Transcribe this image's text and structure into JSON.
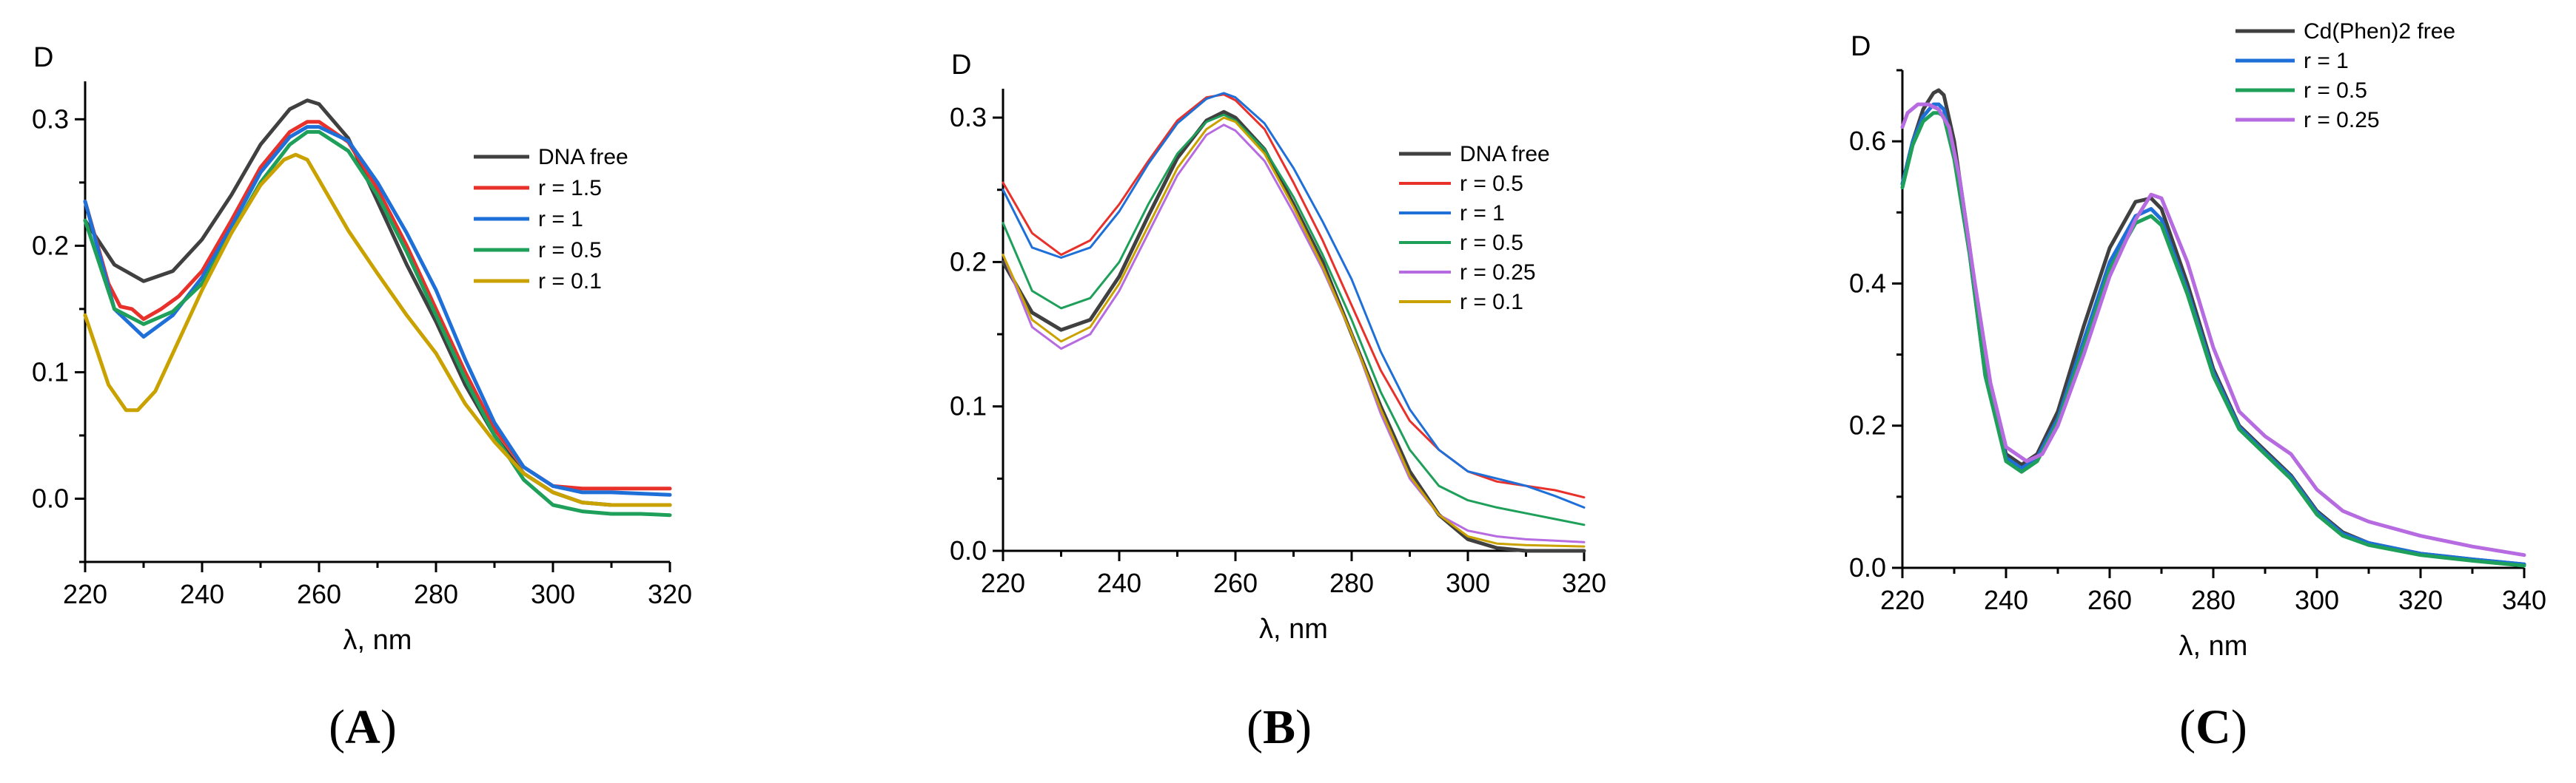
{
  "chart_data": [
    {
      "type": "line",
      "panel": "A",
      "panel_label": "A",
      "ylabel": "D",
      "xlabel": "λ, nm",
      "xlim": [
        220,
        320
      ],
      "ylim": [
        -0.05,
        0.33
      ],
      "xticks": [
        220,
        240,
        260,
        280,
        300,
        320
      ],
      "yticks": [
        0.0,
        0.1,
        0.2,
        0.3
      ],
      "ytick_labels": [
        "0.0",
        "0.1",
        "0.2",
        "0.3"
      ],
      "legend_position": "right-center",
      "series": [
        {
          "name": "DNA free",
          "color": "#404040",
          "width": 5,
          "x": [
            220,
            225,
            230,
            235,
            240,
            245,
            250,
            255,
            258,
            260,
            265,
            270,
            275,
            280,
            285,
            290,
            295,
            300,
            305,
            310,
            315,
            320
          ],
          "y": [
            0.22,
            0.185,
            0.172,
            0.18,
            0.205,
            0.24,
            0.28,
            0.308,
            0.315,
            0.312,
            0.285,
            0.235,
            0.185,
            0.14,
            0.09,
            0.05,
            0.02,
            0.005,
            -0.003,
            -0.005,
            -0.005,
            -0.005
          ]
        },
        {
          "name": "r = 1.5",
          "color": "#e8312a",
          "width": 5,
          "x": [
            220,
            224,
            226,
            228,
            230,
            233,
            236,
            240,
            245,
            250,
            255,
            258,
            260,
            265,
            270,
            275,
            280,
            285,
            290,
            295,
            300,
            305,
            310,
            320
          ],
          "y": [
            0.235,
            0.17,
            0.152,
            0.15,
            0.142,
            0.15,
            0.16,
            0.18,
            0.22,
            0.262,
            0.29,
            0.298,
            0.298,
            0.282,
            0.245,
            0.2,
            0.15,
            0.1,
            0.055,
            0.025,
            0.01,
            0.008,
            0.008,
            0.008
          ]
        },
        {
          "name": "r = 1",
          "color": "#1f6fd8",
          "width": 5,
          "x": [
            220,
            225,
            230,
            235,
            240,
            245,
            250,
            255,
            258,
            260,
            265,
            270,
            275,
            280,
            285,
            290,
            295,
            300,
            305,
            310,
            320
          ],
          "y": [
            0.235,
            0.15,
            0.128,
            0.145,
            0.175,
            0.215,
            0.258,
            0.286,
            0.294,
            0.294,
            0.283,
            0.25,
            0.21,
            0.165,
            0.11,
            0.06,
            0.025,
            0.01,
            0.005,
            0.005,
            0.003
          ]
        },
        {
          "name": "r = 0.5",
          "color": "#1fa05a",
          "width": 5,
          "x": [
            220,
            225,
            230,
            235,
            240,
            245,
            250,
            255,
            258,
            260,
            265,
            270,
            275,
            280,
            285,
            290,
            295,
            300,
            305,
            310,
            315,
            320
          ],
          "y": [
            0.22,
            0.15,
            0.138,
            0.148,
            0.17,
            0.21,
            0.25,
            0.28,
            0.29,
            0.29,
            0.275,
            0.24,
            0.195,
            0.145,
            0.095,
            0.05,
            0.015,
            -0.005,
            -0.01,
            -0.012,
            -0.012,
            -0.013
          ]
        },
        {
          "name": "r = 0.1",
          "color": "#c9a200",
          "width": 5,
          "x": [
            220,
            224,
            227,
            229,
            232,
            235,
            240,
            245,
            250,
            254,
            256,
            258,
            260,
            265,
            270,
            275,
            280,
            285,
            290,
            295,
            300,
            305,
            310,
            320
          ],
          "y": [
            0.145,
            0.09,
            0.07,
            0.07,
            0.085,
            0.115,
            0.165,
            0.21,
            0.248,
            0.268,
            0.272,
            0.268,
            0.252,
            0.212,
            0.178,
            0.145,
            0.115,
            0.075,
            0.045,
            0.02,
            0.005,
            -0.003,
            -0.005,
            -0.005
          ]
        }
      ]
    },
    {
      "type": "line",
      "panel": "B",
      "panel_label": "B",
      "ylabel": "D",
      "xlabel": "λ, nm",
      "xlim": [
        220,
        320
      ],
      "ylim": [
        0.0,
        0.32
      ],
      "xticks": [
        220,
        240,
        260,
        280,
        300,
        320
      ],
      "yticks": [
        0.0,
        0.1,
        0.2,
        0.3
      ],
      "ytick_labels": [
        "0.0",
        "0.1",
        "0.2",
        "0.3"
      ],
      "legend_position": "right-center",
      "series": [
        {
          "name": "DNA free",
          "color": "#404040",
          "width": 5,
          "x": [
            220,
            225,
            230,
            235,
            240,
            245,
            250,
            255,
            258,
            260,
            265,
            270,
            275,
            280,
            285,
            290,
            295,
            300,
            305,
            310,
            320
          ],
          "y": [
            0.2,
            0.165,
            0.153,
            0.16,
            0.19,
            0.232,
            0.272,
            0.298,
            0.304,
            0.3,
            0.278,
            0.24,
            0.2,
            0.15,
            0.1,
            0.055,
            0.025,
            0.008,
            0.002,
            0.0,
            0.0
          ]
        },
        {
          "name": "r = 0.5",
          "color": "#e8312a",
          "width": 3,
          "x": [
            220,
            225,
            230,
            235,
            240,
            245,
            250,
            255,
            258,
            260,
            265,
            270,
            275,
            280,
            285,
            290,
            295,
            300,
            305,
            310,
            315,
            320
          ],
          "y": [
            0.255,
            0.22,
            0.205,
            0.215,
            0.24,
            0.27,
            0.298,
            0.314,
            0.316,
            0.312,
            0.292,
            0.255,
            0.215,
            0.17,
            0.125,
            0.09,
            0.07,
            0.055,
            0.048,
            0.045,
            0.042,
            0.037
          ]
        },
        {
          "name": "r = 1",
          "color": "#1f6fd8",
          "width": 3,
          "x": [
            220,
            225,
            230,
            235,
            240,
            245,
            250,
            255,
            258,
            260,
            265,
            270,
            275,
            280,
            285,
            290,
            295,
            300,
            305,
            310,
            315,
            320
          ],
          "y": [
            0.25,
            0.21,
            0.203,
            0.21,
            0.235,
            0.268,
            0.296,
            0.313,
            0.317,
            0.314,
            0.296,
            0.265,
            0.228,
            0.188,
            0.138,
            0.098,
            0.07,
            0.055,
            0.05,
            0.045,
            0.038,
            0.03
          ]
        },
        {
          "name": "r = 0.5",
          "color": "#1fa05a",
          "width": 3,
          "x": [
            220,
            225,
            230,
            235,
            240,
            245,
            250,
            255,
            258,
            260,
            265,
            270,
            275,
            280,
            285,
            290,
            295,
            300,
            305,
            310,
            315,
            320
          ],
          "y": [
            0.227,
            0.18,
            0.168,
            0.175,
            0.2,
            0.24,
            0.275,
            0.297,
            0.302,
            0.298,
            0.278,
            0.245,
            0.205,
            0.16,
            0.11,
            0.07,
            0.045,
            0.035,
            0.03,
            0.026,
            0.022,
            0.018
          ]
        },
        {
          "name": "r = 0.25",
          "color": "#b66be0",
          "width": 3,
          "x": [
            220,
            225,
            230,
            235,
            240,
            245,
            250,
            255,
            258,
            260,
            265,
            270,
            275,
            280,
            285,
            290,
            295,
            300,
            305,
            310,
            315,
            320
          ],
          "y": [
            0.205,
            0.155,
            0.14,
            0.15,
            0.18,
            0.22,
            0.26,
            0.288,
            0.295,
            0.291,
            0.27,
            0.234,
            0.195,
            0.15,
            0.095,
            0.05,
            0.025,
            0.014,
            0.01,
            0.008,
            0.007,
            0.006
          ]
        },
        {
          "name": "r = 0.1",
          "color": "#c9a200",
          "width": 3,
          "x": [
            220,
            225,
            230,
            235,
            240,
            245,
            250,
            255,
            258,
            260,
            265,
            270,
            275,
            280,
            285,
            290,
            295,
            300,
            305,
            310,
            320
          ],
          "y": [
            0.205,
            0.16,
            0.145,
            0.155,
            0.185,
            0.225,
            0.265,
            0.292,
            0.3,
            0.297,
            0.275,
            0.238,
            0.197,
            0.15,
            0.098,
            0.052,
            0.025,
            0.01,
            0.005,
            0.004,
            0.003
          ]
        }
      ]
    },
    {
      "type": "line",
      "panel": "C",
      "panel_label": "C",
      "ylabel": "D",
      "xlabel": "λ, nm",
      "xlim": [
        220,
        340
      ],
      "ylim": [
        0.0,
        0.7
      ],
      "xticks": [
        220,
        240,
        260,
        280,
        300,
        320,
        340
      ],
      "yticks": [
        0.0,
        0.2,
        0.4,
        0.6
      ],
      "ytick_labels": [
        "0.0",
        "0.2",
        "0.4",
        "0.6"
      ],
      "legend_position": "top-center",
      "series": [
        {
          "name": "Cd(Phen)2 free",
          "color": "#404040",
          "width": 5,
          "x": [
            220,
            222,
            224,
            226,
            227,
            228,
            230,
            233,
            236,
            240,
            243,
            246,
            250,
            255,
            260,
            265,
            268,
            270,
            275,
            280,
            285,
            290,
            295,
            300,
            305,
            310,
            320,
            330,
            340
          ],
          "y": [
            0.54,
            0.6,
            0.645,
            0.668,
            0.672,
            0.665,
            0.6,
            0.45,
            0.28,
            0.16,
            0.145,
            0.16,
            0.22,
            0.34,
            0.45,
            0.515,
            0.52,
            0.505,
            0.4,
            0.28,
            0.2,
            0.165,
            0.13,
            0.08,
            0.05,
            0.035,
            0.02,
            0.012,
            0.005
          ]
        },
        {
          "name": "r = 1",
          "color": "#1f6fd8",
          "width": 5,
          "x": [
            220,
            222,
            224,
            226,
            227,
            228,
            230,
            233,
            236,
            240,
            243,
            246,
            250,
            255,
            260,
            265,
            268,
            270,
            275,
            280,
            285,
            290,
            295,
            300,
            305,
            310,
            320,
            330,
            340
          ],
          "y": [
            0.54,
            0.6,
            0.635,
            0.652,
            0.652,
            0.645,
            0.58,
            0.44,
            0.27,
            0.155,
            0.14,
            0.155,
            0.21,
            0.32,
            0.43,
            0.495,
            0.505,
            0.49,
            0.39,
            0.275,
            0.198,
            0.162,
            0.128,
            0.078,
            0.048,
            0.035,
            0.02,
            0.012,
            0.005
          ]
        },
        {
          "name": "r = 0.5",
          "color": "#1fa05a",
          "width": 5,
          "x": [
            220,
            222,
            224,
            226,
            227,
            228,
            230,
            233,
            236,
            240,
            243,
            246,
            250,
            255,
            260,
            265,
            268,
            270,
            275,
            280,
            285,
            290,
            295,
            300,
            305,
            310,
            320,
            330,
            340
          ],
          "y": [
            0.535,
            0.595,
            0.628,
            0.64,
            0.64,
            0.635,
            0.575,
            0.44,
            0.27,
            0.15,
            0.135,
            0.15,
            0.205,
            0.31,
            0.42,
            0.485,
            0.495,
            0.482,
            0.385,
            0.27,
            0.195,
            0.16,
            0.125,
            0.075,
            0.045,
            0.032,
            0.018,
            0.01,
            0.003
          ]
        },
        {
          "name": "r = 0.25",
          "color": "#b66be0",
          "width": 5,
          "x": [
            220,
            221,
            223,
            225,
            227,
            229,
            231,
            234,
            237,
            240,
            244,
            247,
            250,
            255,
            260,
            265,
            268,
            270,
            275,
            280,
            285,
            290,
            295,
            300,
            305,
            310,
            320,
            330,
            340
          ],
          "y": [
            0.62,
            0.64,
            0.652,
            0.652,
            0.645,
            0.62,
            0.55,
            0.4,
            0.26,
            0.17,
            0.15,
            0.16,
            0.2,
            0.3,
            0.41,
            0.49,
            0.525,
            0.52,
            0.43,
            0.31,
            0.22,
            0.185,
            0.16,
            0.11,
            0.08,
            0.065,
            0.045,
            0.03,
            0.018
          ]
        }
      ]
    }
  ]
}
